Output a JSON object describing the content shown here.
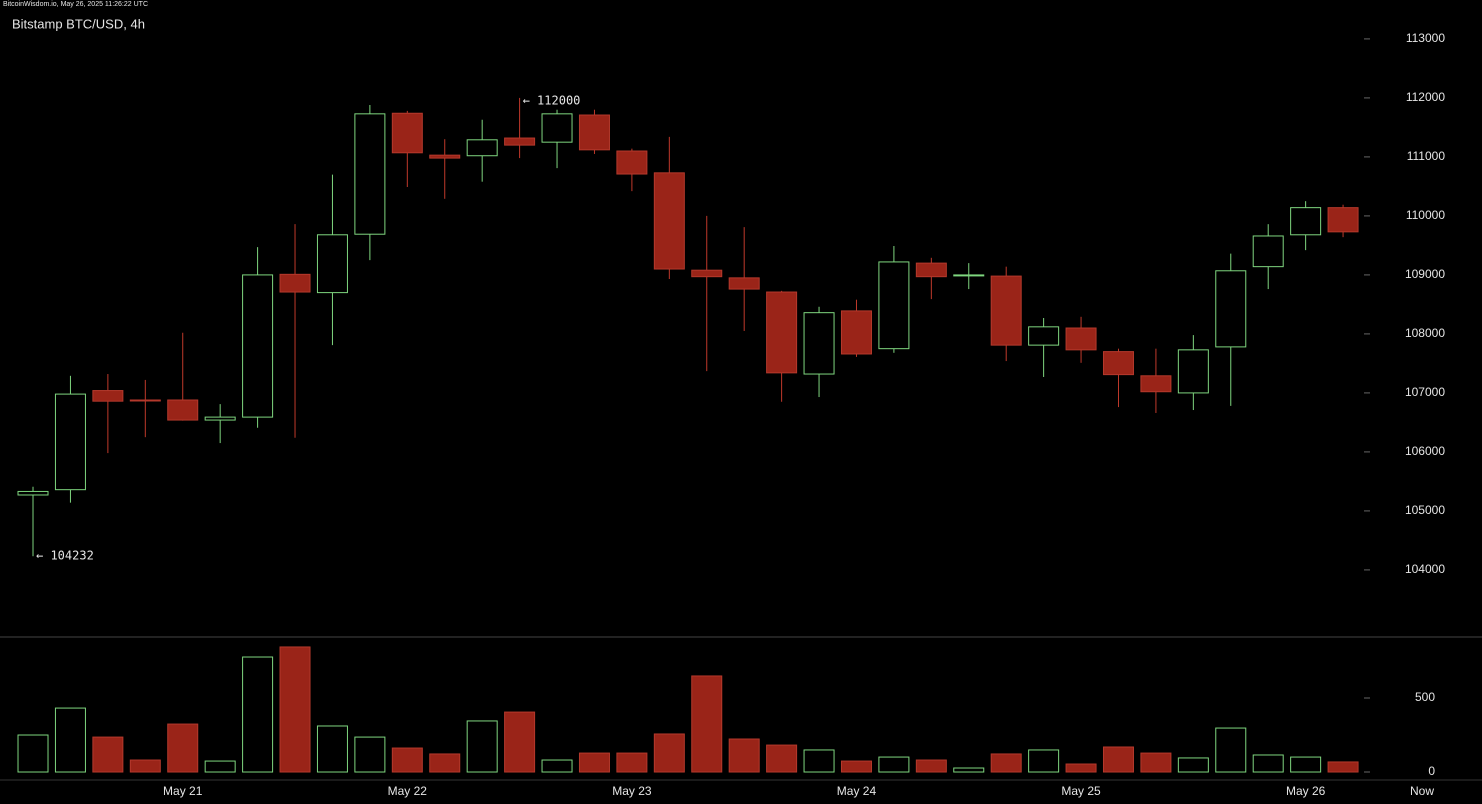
{
  "chart_data": {
    "type": "candlestick",
    "source": "BitcoinWisdom.io, May 26, 2025 11:26:22 UTC",
    "title": "Bitstamp BTC/USD, 4h",
    "categories": [
      null,
      null,
      null,
      null,
      "May 21",
      null,
      null,
      null,
      null,
      null,
      "May 22",
      null,
      null,
      null,
      null,
      null,
      "May 23",
      null,
      null,
      null,
      null,
      null,
      "May 24",
      null,
      null,
      null,
      null,
      null,
      "May 25",
      null,
      null,
      null,
      null,
      null,
      "May 26",
      null
    ],
    "end_label": "Now",
    "open": [
      105270,
      105360,
      107040,
      106880,
      106880,
      106540,
      106590,
      109010,
      108700,
      109690,
      111740,
      111030,
      111020,
      111320,
      111250,
      111710,
      111100,
      110730,
      109080,
      108950,
      108710,
      107320,
      108390,
      107750,
      109200,
      108990,
      108980,
      107810,
      108100,
      107700,
      107290,
      107000,
      107780,
      109140,
      109680,
      110140
    ],
    "high": [
      105410,
      107290,
      107320,
      107220,
      108020,
      106810,
      109470,
      109860,
      110700,
      111880,
      111780,
      111300,
      111630,
      112000,
      111800,
      111800,
      111140,
      111340,
      110000,
      109810,
      108730,
      108460,
      108580,
      109490,
      109290,
      109200,
      109140,
      108270,
      108290,
      107750,
      107750,
      107980,
      109360,
      109860,
      110250,
      110190
    ],
    "low": [
      104232,
      105140,
      105980,
      106250,
      106530,
      106150,
      106410,
      106240,
      107810,
      109250,
      110490,
      110290,
      110580,
      110980,
      110810,
      111050,
      110420,
      108930,
      107370,
      108050,
      106850,
      106930,
      107610,
      107680,
      108590,
      108760,
      107540,
      107270,
      107510,
      106760,
      106660,
      106710,
      106780,
      108760,
      109420,
      109640
    ],
    "close": [
      105330,
      106980,
      106860,
      106870,
      106540,
      106590,
      109000,
      108710,
      109680,
      111730,
      111070,
      110980,
      111290,
      111200,
      111730,
      111120,
      110710,
      109100,
      108970,
      108760,
      107340,
      108360,
      107660,
      109220,
      108970,
      109000,
      107810,
      108120,
      107730,
      107310,
      107020,
      107730,
      109070,
      109660,
      110140,
      109730
    ],
    "volume": [
      250,
      432,
      236,
      81,
      324,
      74,
      777,
      845,
      311,
      236,
      162,
      122,
      345,
      405,
      81,
      128,
      128,
      257,
      649,
      223,
      182,
      149,
      74,
      101,
      81,
      27,
      122,
      149,
      54,
      169,
      128,
      95,
      297,
      115,
      101,
      68
    ],
    "annotations": {
      "high": "← 112000",
      "low": "← 104232"
    },
    "ylim": [
      102880,
      113490
    ],
    "yticks": [
      104000,
      105000,
      106000,
      107000,
      108000,
      109000,
      110000,
      111000,
      112000,
      113000
    ],
    "volume_ylim": [
      -54,
      892
    ],
    "volume_yticks": [
      0,
      500
    ],
    "up_color": "#7fd67f",
    "down_color": "#9a2418"
  }
}
